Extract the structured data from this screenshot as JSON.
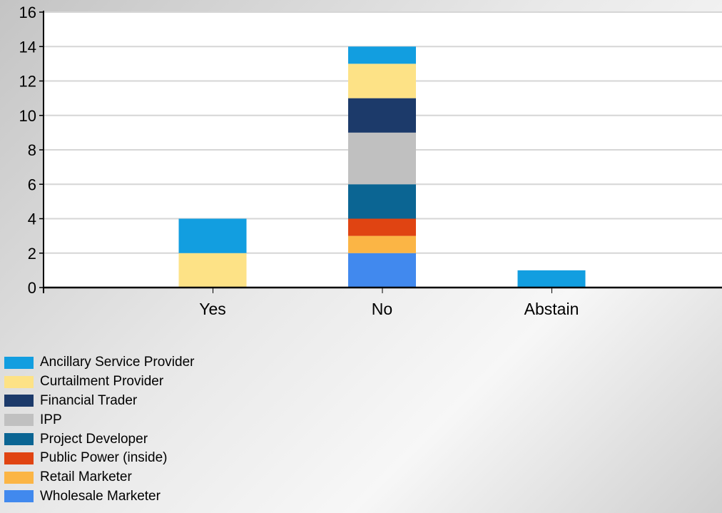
{
  "chart_data": {
    "type": "bar",
    "stacked": true,
    "categories": [
      "Yes",
      "No",
      "Abstain"
    ],
    "ylim": [
      0,
      16
    ],
    "yticks": [
      0,
      2,
      4,
      6,
      8,
      10,
      12,
      14,
      16
    ],
    "grid": true,
    "legend_position": "bottom-left",
    "series": [
      {
        "name": "Wholesale Marketer",
        "color": "#4189ee",
        "values": [
          0,
          2,
          0
        ]
      },
      {
        "name": "Retail Marketer",
        "color": "#fbb545",
        "values": [
          0,
          1,
          0
        ]
      },
      {
        "name": "Public Power (inside)",
        "color": "#e04412",
        "values": [
          0,
          1,
          0
        ]
      },
      {
        "name": "Project Developer",
        "color": "#0b6593",
        "values": [
          0,
          2,
          0
        ]
      },
      {
        "name": "IPP",
        "color": "#c0c0c0",
        "values": [
          0,
          3,
          0
        ]
      },
      {
        "name": "Financial Trader",
        "color": "#1c3a6a",
        "values": [
          0,
          2,
          0
        ]
      },
      {
        "name": "Curtailment Provider",
        "color": "#fde286",
        "values": [
          2,
          2,
          0
        ]
      },
      {
        "name": "Ancillary Service Provider",
        "color": "#129ee0",
        "values": [
          2,
          1,
          1
        ]
      }
    ],
    "legend_order": [
      "Ancillary Service Provider",
      "Curtailment Provider",
      "Financial Trader",
      "IPP",
      "Project Developer",
      "Public Power (inside)",
      "Retail Marketer",
      "Wholesale Marketer"
    ]
  }
}
